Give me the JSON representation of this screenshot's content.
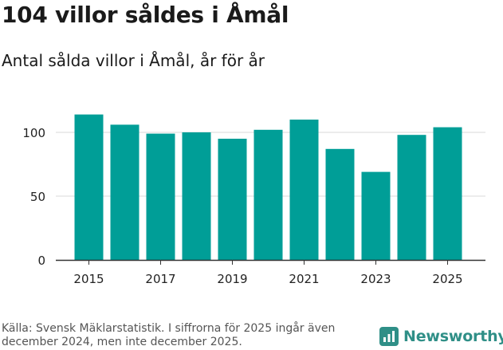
{
  "title": "104 villor såldes i Åmål",
  "subtitle": "Antal sålda villor i Åmål, år för år",
  "source": "Källa: Svensk Mäklarstatistik. I siffrorna för 2025 ingår även december 2024, men inte december 2025.",
  "brand": {
    "name": "Newsworthy",
    "icon": "newsworthy-logo-icon"
  },
  "colors": {
    "bar": "#009e97",
    "grid": "#d9d9d9",
    "axis": "#333333",
    "brand": "#2f8f87"
  },
  "chart_data": {
    "type": "bar",
    "categories": [
      "2015",
      "2016",
      "2017",
      "2018",
      "2019",
      "2020",
      "2021",
      "2022",
      "2023",
      "2024",
      "2025"
    ],
    "values": [
      114,
      106,
      99,
      100,
      95,
      102,
      110,
      87,
      69,
      98,
      104
    ],
    "x_tick_labels": [
      "2015",
      "2017",
      "2019",
      "2021",
      "2023",
      "2025"
    ],
    "y_ticks": [
      0,
      50,
      100
    ],
    "y_tick_labels": [
      "0",
      "50",
      "100"
    ],
    "ylim": [
      0,
      125
    ],
    "grid": true,
    "legend": "none",
    "title": "104 villor såldes i Åmål",
    "subtitle": "Antal sålda villor i Åmål, år för år",
    "xlabel": "",
    "ylabel": ""
  }
}
